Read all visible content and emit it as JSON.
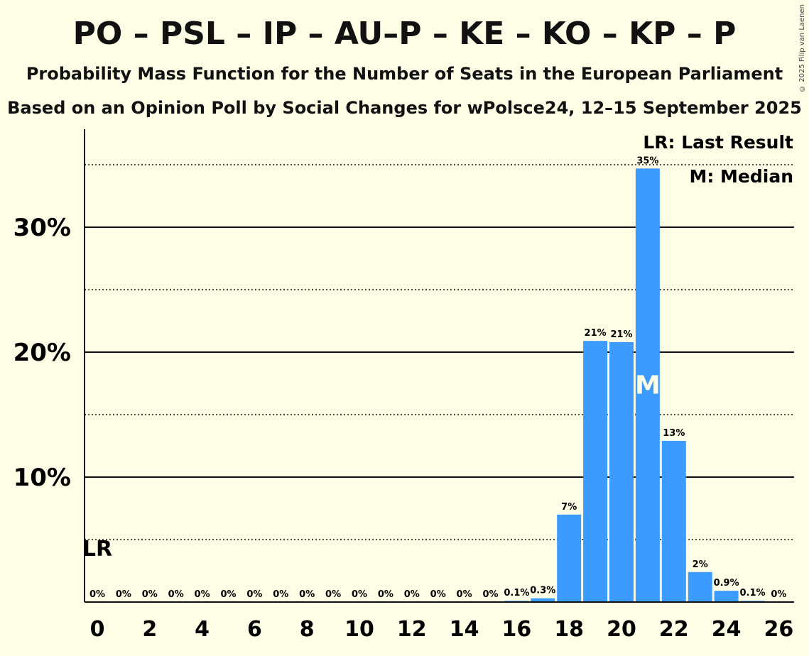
{
  "header": {
    "title": "PO – PSL – IP – AU–P – KE – KO – KP – P",
    "subtitle1": "Probability Mass Function for the Number of Seats in the European Parliament",
    "subtitle2": "Based on an Opinion Poll by Social Changes for wPolsce24, 12–15 September 2025",
    "copyright": "© 2025 Filip van Laenen"
  },
  "legend": {
    "last_result": "LR: Last Result",
    "median": "M: Median"
  },
  "colors": {
    "background": "#fefde6",
    "bar": "#3c9bff",
    "text": "#111111"
  },
  "chart_data": {
    "type": "bar",
    "x": [
      0,
      1,
      2,
      3,
      4,
      5,
      6,
      7,
      8,
      9,
      10,
      11,
      12,
      13,
      14,
      15,
      16,
      17,
      18,
      19,
      20,
      21,
      22,
      23,
      24,
      25,
      26
    ],
    "values": [
      0,
      0,
      0,
      0,
      0,
      0,
      0,
      0,
      0,
      0,
      0,
      0,
      0,
      0,
      0,
      0,
      0.1,
      0.3,
      7,
      20.9,
      20.8,
      34.7,
      12.9,
      2.4,
      0.9,
      0.1,
      0
    ],
    "labels": [
      "0%",
      "0%",
      "0%",
      "0%",
      "0%",
      "0%",
      "0%",
      "0%",
      "0%",
      "0%",
      "0%",
      "0%",
      "0%",
      "0%",
      "0%",
      "0%",
      "0.1%",
      "0.3%",
      "7%",
      "21%",
      "21%",
      "35%",
      "13%",
      "2%",
      "0.9%",
      "0.1%",
      "0%"
    ],
    "x_tick_labels": [
      "0",
      "2",
      "4",
      "6",
      "8",
      "10",
      "12",
      "14",
      "16",
      "18",
      "20",
      "22",
      "24",
      "26"
    ],
    "x_tick_values": [
      0,
      2,
      4,
      6,
      8,
      10,
      12,
      14,
      16,
      18,
      20,
      22,
      24,
      26
    ],
    "y_ticks": [
      {
        "value": 10,
        "label": "10%"
      },
      {
        "value": 20,
        "label": "20%"
      },
      {
        "value": 30,
        "label": "30%"
      }
    ],
    "y_minor_gridlines": [
      5,
      15,
      25,
      35
    ],
    "ylim": [
      0,
      37.5
    ],
    "last_result": {
      "seat": 0,
      "label": "LR"
    },
    "median": {
      "seat": 21,
      "label": "M"
    },
    "ylabel": "",
    "xlabel": ""
  }
}
